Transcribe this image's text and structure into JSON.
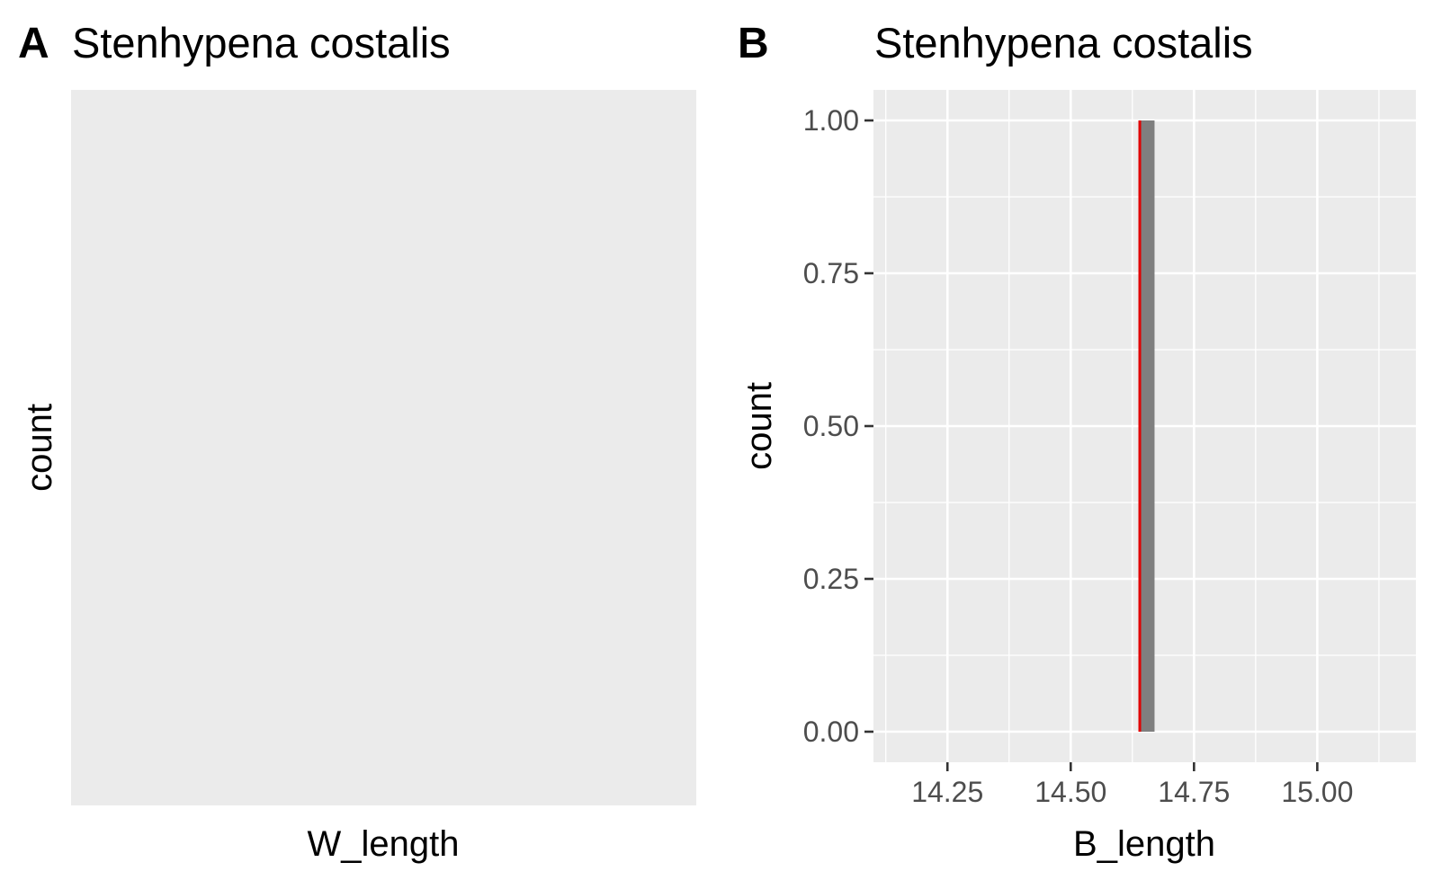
{
  "colors": {
    "panel_bg": "#ebebeb",
    "grid": "#ffffff",
    "bar": "#7f7f7f",
    "vline": "#e00000",
    "tick": "#333333",
    "tick_label": "#4d4d4d"
  },
  "chart_data": [
    {
      "panel": "A",
      "type": "bar",
      "title": "Stenhypena costalis",
      "xlabel": "W_length",
      "ylabel": "count",
      "grid": false,
      "series": []
    },
    {
      "panel": "B",
      "type": "bar",
      "title": "Stenhypena costalis",
      "xlabel": "B_length",
      "ylabel": "count",
      "grid": true,
      "xlim": [
        14.1,
        15.2
      ],
      "ylim": [
        -0.05,
        1.05
      ],
      "x_ticks": [
        14.25,
        14.5,
        14.75,
        15.0
      ],
      "x_tick_labels": [
        "14.25",
        "14.50",
        "14.75",
        "15.00"
      ],
      "y_ticks": [
        0,
        0.25,
        0.5,
        0.75,
        1.0
      ],
      "y_tick_labels": [
        "0.00",
        "0.25",
        "0.50",
        "0.75",
        "1.00"
      ],
      "bars": [
        {
          "x_start": 14.64,
          "x_end": 14.67,
          "count": 1
        }
      ],
      "vline": {
        "x": 14.64,
        "label": ""
      }
    }
  ]
}
